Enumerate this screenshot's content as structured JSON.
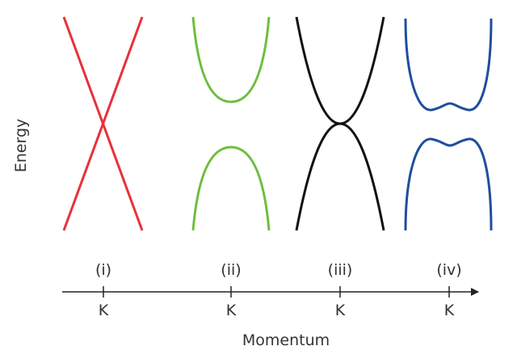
{
  "axes": {
    "y_label": "Energy",
    "x_label": "Momentum"
  },
  "panels": [
    {
      "id": "i",
      "label": "(i)",
      "tick": "K",
      "color": "#e8313a",
      "shape": "linear-crossing"
    },
    {
      "id": "ii",
      "label": "(ii)",
      "tick": "K",
      "color": "#6cbf3c",
      "shape": "gapped-parabolic"
    },
    {
      "id": "iii",
      "label": "(iii)",
      "tick": "K",
      "color": "#111111",
      "shape": "quadratic-touching"
    },
    {
      "id": "iv",
      "label": "(iv)",
      "tick": "K",
      "color": "#1f4e9c",
      "shape": "gapped-mexican-hat"
    }
  ],
  "colors": {
    "axis": "#222222",
    "text": "#333333"
  }
}
